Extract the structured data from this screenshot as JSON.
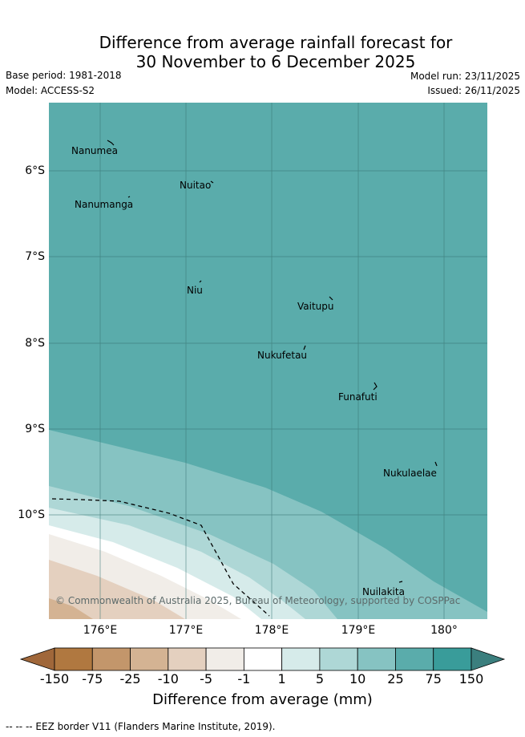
{
  "header": {
    "title_line1": "Difference from average rainfall forecast for",
    "title_line2": "30 November to 6 December 2025",
    "base_period": "Base period: 1981-2018",
    "model": "Model: ACCESS-S2",
    "model_run": "Model run: 23/11/2025",
    "issued": "Issued: 26/11/2025"
  },
  "map": {
    "places": [
      "Nanumea",
      "Nuitao",
      "Nanumanga",
      "Niu",
      "Vaitupu",
      "Nukufetau",
      "Funafuti",
      "Nukulaelae",
      "Nuilakita"
    ],
    "copyright": "© Commonwealth of Australia 2025, Bureau of Meteorology, supported by COSPPac",
    "lat_labels": [
      "6°S",
      "7°S",
      "8°S",
      "9°S",
      "10°S"
    ],
    "lon_labels": [
      "176°E",
      "177°E",
      "178°E",
      "179°E",
      "180°"
    ]
  },
  "colorbar": {
    "labels": [
      "-150",
      "-75",
      "-25",
      "-10",
      "-5",
      "-1",
      "1",
      "5",
      "10",
      "25",
      "75",
      "150"
    ],
    "title": "Difference from average (mm)",
    "colors": [
      "#a0673a",
      "#b07840",
      "#c3966b",
      "#d4b393",
      "#e4d0bf",
      "#f1ede8",
      "#ffffff",
      "#d6ebea",
      "#aed7d6",
      "#86c3c2",
      "#5aacab",
      "#399c9a",
      "#3b7f7e"
    ]
  },
  "footer": {
    "legend": "--  --  -- EEZ border V11 (Flanders Marine Institute, 2019)."
  }
}
